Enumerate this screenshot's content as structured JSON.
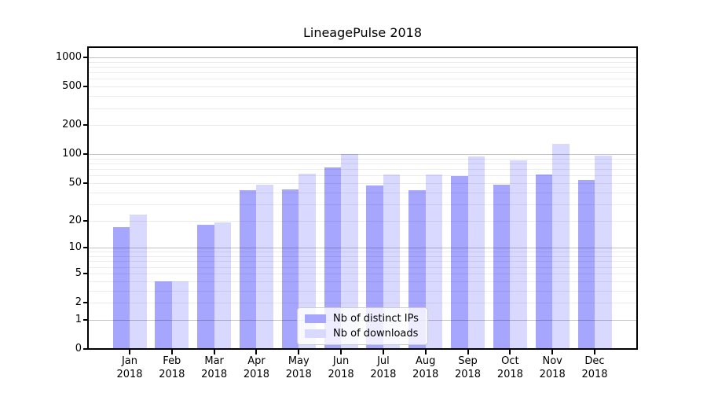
{
  "title": "LineagePulse 2018",
  "legend": {
    "items": [
      {
        "label": "Nb of distinct IPs",
        "color": "#a6a6ff"
      },
      {
        "label": "Nb of downloads",
        "color": "#d9d9ff"
      }
    ]
  },
  "chart_data": {
    "type": "bar",
    "title": "LineagePulse 2018",
    "categories": [
      "Jan 2018",
      "Feb 2018",
      "Mar 2018",
      "Apr 2018",
      "May 2018",
      "Jun 2018",
      "Jul 2018",
      "Aug 2018",
      "Sep 2018",
      "Oct 2018",
      "Nov 2018",
      "Dec 2018"
    ],
    "series": [
      {
        "name": "Nb of distinct IPs",
        "color": "#a6a6ff",
        "values": [
          17,
          4,
          18,
          42,
          43,
          73,
          47,
          42,
          59,
          48,
          61,
          54
        ]
      },
      {
        "name": "Nb of downloads",
        "color": "#d9d9ff",
        "values": [
          23,
          4,
          19,
          48,
          63,
          100,
          62,
          62,
          94,
          87,
          129,
          97
        ]
      }
    ],
    "xlabel": "",
    "ylabel": "",
    "yscale": "log1p",
    "y_ticks": [
      0,
      1,
      2,
      5,
      10,
      20,
      50,
      100,
      200,
      500,
      1000
    ],
    "y_major_gridlines": [
      1,
      10,
      100,
      1000
    ],
    "ylim": [
      0,
      1000
    ],
    "grid": true,
    "legend_position": "lower center",
    "background": "#ffffff"
  }
}
